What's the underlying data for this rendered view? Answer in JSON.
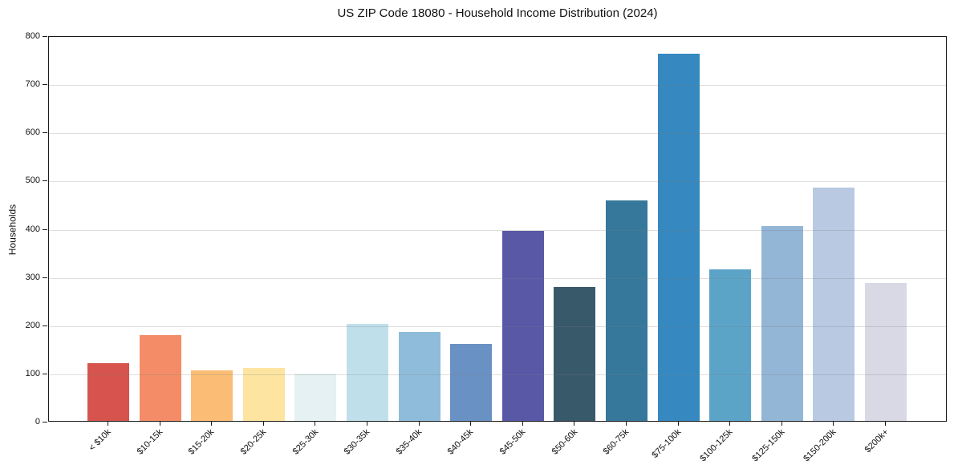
{
  "chart_data": {
    "type": "bar",
    "title": "US ZIP Code 18080 - Household Income Distribution (2024)",
    "xlabel": "",
    "ylabel": "Households",
    "categories": [
      "< $10k",
      "$10-15k",
      "$15-20k",
      "$20-25k",
      "$25-30k",
      "$30-35k",
      "$35-40k",
      "$40-45k",
      "$45-50k",
      "$50-60k",
      "$60-75k",
      "$75-100k",
      "$100-125k",
      "$125-150k",
      "$150-200k",
      "$200k+"
    ],
    "values": [
      120,
      178,
      105,
      110,
      98,
      202,
      184,
      159,
      394,
      277,
      457,
      762,
      315,
      404,
      484,
      286
    ],
    "bar_colors": [
      "#d6544d",
      "#f48d67",
      "#fbbd75",
      "#fde4a1",
      "#e5f1f2",
      "#bfe0eb",
      "#8fbcda",
      "#6a91c4",
      "#5958a7",
      "#38596a",
      "#36789b",
      "#3689c0",
      "#5ba4c8",
      "#93b5d6",
      "#b8c9e1",
      "#d8d9e5"
    ],
    "ylim": [
      0,
      800
    ],
    "yticks": [
      0,
      100,
      200,
      300,
      400,
      500,
      600,
      700,
      800
    ],
    "grid": "horizontal",
    "gridline_color": "#e6e6e6",
    "spine_color": "#1a1a1a",
    "legend": "none"
  }
}
